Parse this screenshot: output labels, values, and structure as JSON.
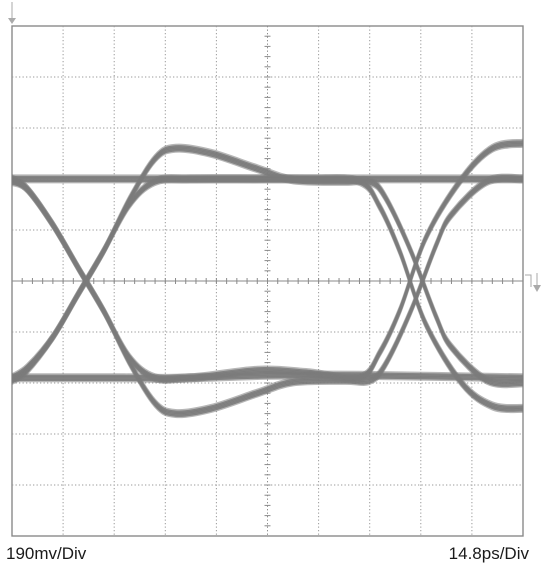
{
  "chart_data": {
    "type": "line",
    "chart_kind": "eye-diagram",
    "ylabel": "190mv/Div",
    "xlabel": "14.8ps/Div",
    "grid": true,
    "divisions": {
      "x": 10,
      "y": 10
    },
    "xlim": [
      0,
      10
    ],
    "ylim": [
      -5,
      5
    ],
    "levels": {
      "high": 2.0,
      "low": -1.9,
      "overshoot_high": 2.6,
      "overshoot_low": -2.6
    },
    "crossings_x": [
      1.8,
      7.8
    ],
    "series": [
      {
        "x": [
          0,
          0.3,
          0.8,
          1.3,
          1.8,
          2.3,
          2.8,
          3.2,
          3.9,
          4.8,
          5.5,
          6.5,
          7.0,
          7.3,
          7.8,
          8.3,
          8.6,
          9.3,
          10.0
        ],
        "y": [
          2.0,
          1.8,
          1.1,
          0.25,
          -0.6,
          -1.6,
          -2.4,
          -2.6,
          -2.5,
          -2.2,
          -1.98,
          -1.95,
          -1.95,
          -1.65,
          -0.6,
          0.7,
          1.3,
          1.95,
          2.0
        ]
      },
      {
        "x": [
          0,
          0.3,
          0.8,
          1.3,
          1.8,
          2.3,
          2.8,
          3.2,
          3.9,
          4.8,
          5.5,
          6.5,
          7.0,
          7.3,
          7.8,
          8.3,
          8.6,
          9.3,
          10.0
        ],
        "y": [
          -1.9,
          -1.7,
          -1.1,
          -0.25,
          0.6,
          1.6,
          2.4,
          2.6,
          2.5,
          2.2,
          1.98,
          1.95,
          1.95,
          1.65,
          0.6,
          -0.7,
          -1.3,
          -1.95,
          -2.0
        ]
      },
      {
        "x": [
          0,
          1.2,
          1.8,
          3.0,
          4.5,
          5.8,
          6.8,
          7.2,
          7.6,
          8.1,
          8.8,
          9.4,
          10.0
        ],
        "y": [
          2.0,
          2.0,
          2.0,
          2.0,
          2.0,
          2.0,
          1.95,
          1.45,
          0.55,
          -0.85,
          -2.0,
          -2.45,
          -2.5
        ]
      },
      {
        "x": [
          0,
          1.0,
          2.2,
          3.5,
          4.8,
          5.8,
          6.8,
          7.2,
          7.6,
          8.1,
          8.8,
          9.4,
          10.0
        ],
        "y": [
          -1.9,
          -1.9,
          -1.9,
          -1.9,
          -1.75,
          -1.8,
          -1.9,
          -1.4,
          -0.55,
          0.85,
          2.0,
          2.6,
          2.7
        ]
      },
      {
        "x": [
          0,
          0.3,
          0.8,
          1.3,
          1.8,
          2.3,
          2.8,
          3.5,
          5.0,
          6.8,
          10.0
        ],
        "y": [
          1.95,
          1.8,
          1.1,
          0.25,
          -0.6,
          -1.5,
          -1.9,
          -1.9,
          -1.85,
          -1.85,
          -1.9
        ]
      },
      {
        "x": [
          0,
          0.3,
          0.8,
          1.3,
          1.8,
          2.3,
          2.8,
          3.5,
          5.0,
          6.8,
          10.0
        ],
        "y": [
          -1.95,
          -1.75,
          -1.1,
          -0.25,
          0.6,
          1.5,
          1.95,
          2.0,
          2.0,
          2.0,
          2.0
        ]
      }
    ]
  }
}
